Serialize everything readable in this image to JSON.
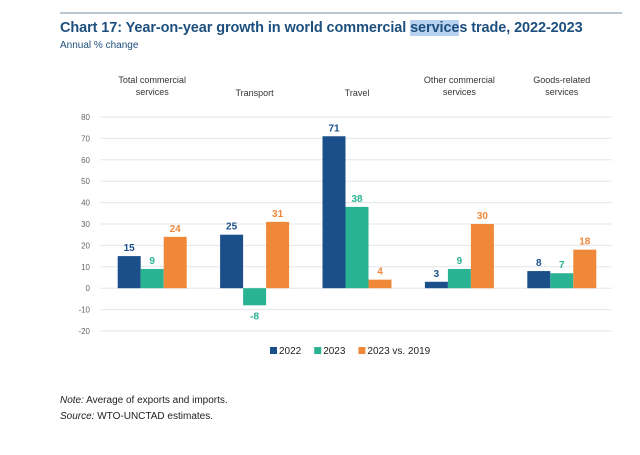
{
  "title_parts": [
    "Chart 17: Year-on-year growth in world commercial ",
    "service",
    "s trade, 2022-2023"
  ],
  "subtitle": "Annual % change",
  "chart_data": {
    "type": "bar",
    "title": "Chart 17: Year-on-year growth in world commercial services trade, 2022-2023",
    "ylabel": "Annual % change",
    "categories": [
      [
        "Total commercial",
        "services"
      ],
      [
        "Transport"
      ],
      [
        "Travel"
      ],
      [
        "Other commercial",
        "services"
      ],
      [
        "Goods-related",
        "services"
      ]
    ],
    "series": [
      {
        "name": "2022",
        "color": "#1b4f8a",
        "values": [
          15,
          25,
          71,
          3,
          8
        ]
      },
      {
        "name": "2023",
        "color": "#2ab393",
        "values": [
          9,
          -8,
          38,
          9,
          7
        ]
      },
      {
        "name": "2023 vs. 2019",
        "color": "#f0883a",
        "values": [
          24,
          31,
          4,
          30,
          18
        ]
      }
    ],
    "ylim": [
      -20,
      80
    ],
    "yticks": [
      80,
      70,
      60,
      50,
      40,
      30,
      20,
      10,
      0,
      -10,
      -20
    ],
    "grid": true,
    "legend": "bottom",
    "data_labels": true
  },
  "note_label": "Note:",
  "note_text": " Average of exports and imports.",
  "source_label": "Source:",
  "source_text": " WTO-UNCTAD estimates."
}
